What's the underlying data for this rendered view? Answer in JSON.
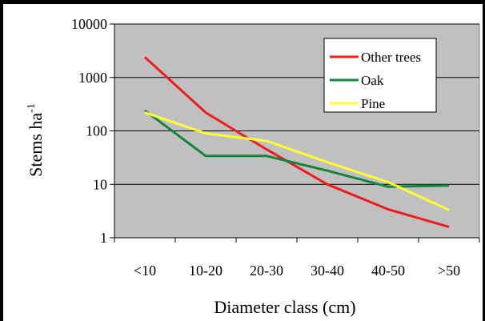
{
  "chart_data": {
    "type": "line",
    "categories": [
      "<10",
      "10-20",
      "20-30",
      "30-40",
      "40-50",
      ">50"
    ],
    "y_scale": "log",
    "ylim": [
      1,
      10000
    ],
    "y_ticks": [
      "1",
      "10",
      "100",
      "1000",
      "10000"
    ],
    "xlabel": "Diameter class (cm)",
    "ylabel": "Stems ha",
    "ylabel_superscript": "-1",
    "grid": true,
    "plot_background": "#c0c0c0",
    "legend_position": "top-right",
    "series": [
      {
        "name": "Other trees",
        "color": "#ee1c1c",
        "values": [
          2400,
          220,
          45,
          10,
          3.4,
          1.6
        ]
      },
      {
        "name": "Oak",
        "color": "#16843a",
        "values": [
          240,
          34,
          34,
          18,
          9,
          9.5
        ]
      },
      {
        "name": "Pine",
        "color": "#ffff33",
        "values": [
          220,
          90,
          65,
          26,
          11,
          3.3
        ]
      }
    ]
  }
}
